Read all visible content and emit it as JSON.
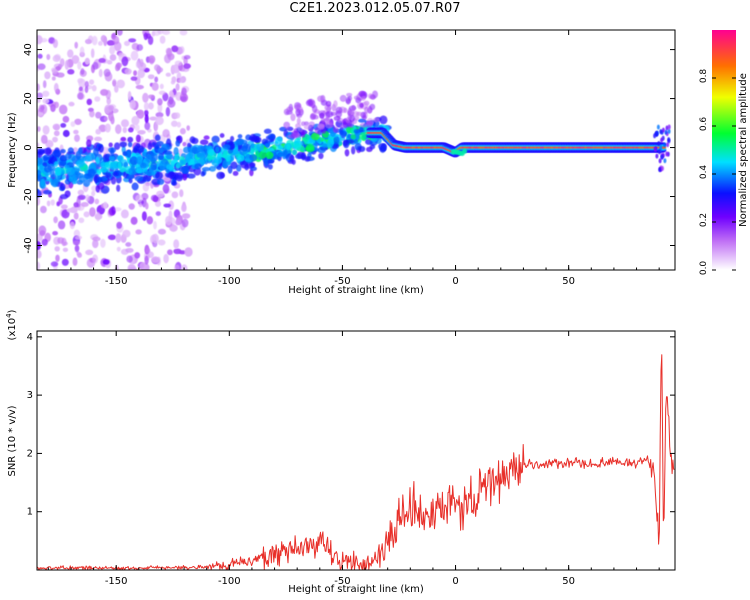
{
  "title": "C2E1.2023.012.05.07.R07",
  "chart_data": [
    {
      "type": "heatmap",
      "xlabel": "Height of straight line (km)",
      "ylabel": "Frequency (Hz)",
      "xlim": [
        -185,
        97
      ],
      "ylim": [
        -50,
        48
      ],
      "xticks": [
        -150,
        -100,
        -50,
        0,
        50
      ],
      "yticks": [
        -40,
        -20,
        0,
        20,
        40
      ],
      "colorbar": {
        "label": "Normalized spectral amplitude",
        "range": [
          0.0,
          1.0
        ],
        "ticks": [
          "0.0",
          "0.2",
          "0.4",
          "0.6",
          "0.8"
        ],
        "colors": [
          "#ffffff",
          "#a000f0",
          "#1000ff",
          "#00e8ff",
          "#00ff10",
          "#ffff00",
          "#ff8000",
          "#ff0080"
        ]
      },
      "ridge": {
        "x": [
          -185,
          -150,
          -120,
          -100,
          -80,
          -60,
          -50,
          -40,
          -32,
          -27,
          -22,
          -15,
          -5,
          0,
          3,
          10,
          30,
          60,
          85,
          90,
          95
        ],
        "y": [
          -10,
          -7,
          -5,
          -3,
          0,
          3,
          4,
          6,
          6,
          1,
          0,
          0,
          0,
          -2,
          0,
          0,
          0,
          0,
          0,
          0,
          0
        ]
      }
    },
    {
      "type": "line",
      "xlabel": "Height of straight line (km)",
      "ylabel": "SNR (10 * v/v)",
      "yunit": "(x10",
      "yunit_exp": "4",
      "yunit_close": ")",
      "xlim": [
        -185,
        97
      ],
      "ylim": [
        0,
        4.1
      ],
      "xticks": [
        -150,
        -100,
        -50,
        0,
        50
      ],
      "yticks": [
        1,
        2,
        3,
        4
      ],
      "color": "#e8302a",
      "series": [
        {
          "x": [
            -185,
            -170,
            -150,
            -130,
            -110,
            -100,
            -90,
            -80,
            -75,
            -70,
            -65,
            -60,
            -55,
            -50,
            -45,
            -40,
            -35,
            -30,
            -25,
            -20,
            -15,
            -10,
            -5,
            0,
            5,
            10,
            15,
            20,
            25,
            30,
            40,
            50,
            60,
            70,
            80,
            85,
            88,
            90,
            91,
            92,
            93,
            95,
            97
          ],
          "y": [
            0.03,
            0.04,
            0.03,
            0.04,
            0.05,
            0.1,
            0.15,
            0.3,
            0.35,
            0.28,
            0.4,
            0.45,
            0.3,
            0.15,
            0.1,
            0.1,
            0.2,
            0.5,
            0.8,
            1.1,
            0.95,
            0.9,
            1.05,
            1.1,
            1.15,
            1.25,
            1.45,
            1.6,
            1.7,
            1.8,
            1.82,
            1.83,
            1.82,
            1.84,
            1.85,
            1.9,
            1.6,
            0.35,
            4.05,
            0.3,
            3.2,
            1.9,
            1.8
          ]
        }
      ]
    }
  ]
}
